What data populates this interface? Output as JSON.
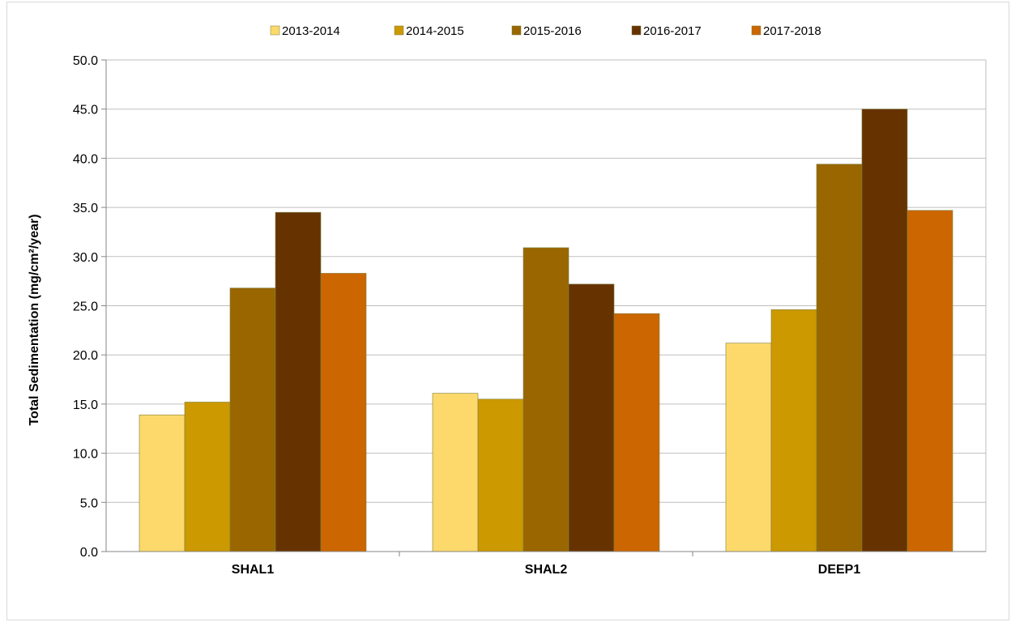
{
  "chart_data": {
    "type": "bar",
    "title": "",
    "xlabel": "",
    "ylabel": "Total Sedimentation (mg/cm²/year)",
    "ylim": [
      0,
      50
    ],
    "yticks": [
      "0.0",
      "5.0",
      "10.0",
      "15.0",
      "20.0",
      "25.0",
      "30.0",
      "35.0",
      "40.0",
      "45.0",
      "50.0"
    ],
    "grid": true,
    "legend_position": "top",
    "categories": [
      "SHAL1",
      "SHAL2",
      "DEEP1"
    ],
    "series": [
      {
        "name": "2013-2014",
        "color": "#fcd96a",
        "values": [
          13.9,
          16.1,
          21.2
        ]
      },
      {
        "name": "2014-2015",
        "color": "#cc9900",
        "values": [
          15.2,
          15.5,
          24.6
        ]
      },
      {
        "name": "2015-2016",
        "color": "#996600",
        "values": [
          26.8,
          30.9,
          39.4
        ]
      },
      {
        "name": "2016-2017",
        "color": "#663300",
        "values": [
          34.5,
          27.2,
          45.0
        ]
      },
      {
        "name": "2017-2018",
        "color": "#cc6600",
        "values": [
          28.3,
          24.2,
          34.7
        ]
      }
    ]
  }
}
